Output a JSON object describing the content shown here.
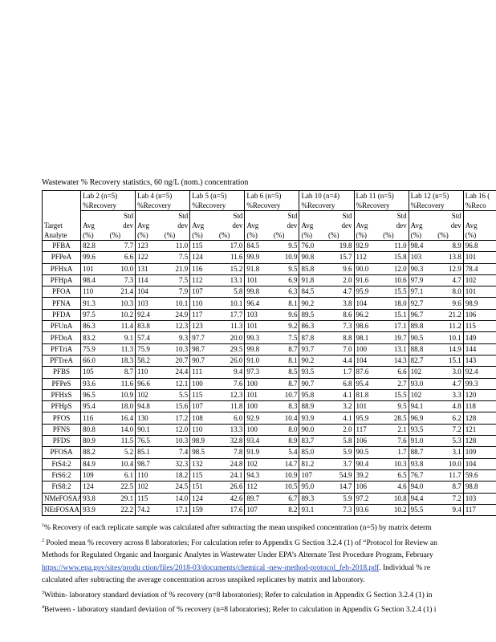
{
  "title": "Wastewater % Recovery statistics, 60 ng/L (nom.) concentration",
  "table": {
    "analyte_header": [
      "Target",
      "Analyte"
    ],
    "recovery_label": "%Recovery",
    "std_label": "Std",
    "dev_label": "dev",
    "avg_label": "Avg",
    "unit_label": "(%)",
    "labs": [
      "Lab 2 (n=5)",
      "Lab 4 (n=5)",
      "Lab 5 (n=5)",
      "Lab 6 (n=5)",
      "Lab 10 (n=4)",
      "Lab 11 (n=5)",
      "Lab 12 (n=5)",
      "Lab 16 ("
    ],
    "clipped_recovery_label": "%Reco",
    "rows": [
      [
        "PFBA",
        "82.8",
        "7.7",
        "123",
        "11.0",
        "115",
        "17.0",
        "84.5",
        "9.5",
        "76.0",
        "19.8",
        "92.9",
        "11.0",
        "98.4",
        "8.9",
        "96.8"
      ],
      [
        "PFPeA",
        "99.6",
        "6.6",
        "122",
        "7.5",
        "124",
        "11.6",
        "99.9",
        "10.9",
        "90.8",
        "15.7",
        "112",
        "15.8",
        "103",
        "13.8",
        "101"
      ],
      [
        "PFHxA",
        "101",
        "10.0",
        "131",
        "21.9",
        "116",
        "15.2",
        "91.8",
        "9.5",
        "85.8",
        "9.6",
        "90.0",
        "12.0",
        "90.3",
        "12.9",
        "78.4"
      ],
      [
        "PFHpA",
        "98.4",
        "7.3",
        "114",
        "7.5",
        "112",
        "13.1",
        "101",
        "6.9",
        "91.8",
        "2.0",
        "91.6",
        "10.6",
        "97.9",
        "4.7",
        "102"
      ],
      [
        "PFOA",
        "110",
        "21.4",
        "104",
        "7.9",
        "107",
        "5.8",
        "99.8",
        "6.3",
        "84.5",
        "4.7",
        "95.9",
        "15.5",
        "97.1",
        "8.0",
        "101"
      ],
      [
        "PFNA",
        "91.3",
        "10.3",
        "103",
        "10.1",
        "110",
        "10.1",
        "96.4",
        "8.1",
        "90.2",
        "3.8",
        "104",
        "18.0",
        "92.7",
        "9.6",
        "98.9"
      ],
      [
        "PFDA",
        "97.5",
        "10.2",
        "92.4",
        "24.9",
        "117",
        "17.7",
        "103",
        "9.6",
        "89.5",
        "8.6",
        "96.2",
        "15.1",
        "96.7",
        "21.2",
        "106"
      ],
      [
        "PFUnA",
        "86.3",
        "11.4",
        "83.8",
        "12.3",
        "123",
        "11.3",
        "101",
        "9.2",
        "86.3",
        "7.3",
        "98.6",
        "17.1",
        "89.8",
        "11.2",
        "115"
      ],
      [
        "PFDoA",
        "83.2",
        "9.1",
        "57.4",
        "9.3",
        "97.7",
        "20.0",
        "99.3",
        "7.5",
        "87.8",
        "8.8",
        "98.1",
        "19.7",
        "90.5",
        "10.1",
        "149"
      ],
      [
        "PFTriA",
        "75.9",
        "11.3",
        "75.9",
        "10.3",
        "98.7",
        "29.5",
        "99.8",
        "8.7",
        "93.7",
        "7.0",
        "100",
        "13.1",
        "88.8",
        "14.9",
        "144"
      ],
      [
        "PFTreA",
        "66.0",
        "18.3",
        "58.2",
        "20.7",
        "90.7",
        "26.0",
        "91.0",
        "8.1",
        "90.2",
        "4.4",
        "104",
        "14.3",
        "82.7",
        "15.1",
        "143"
      ],
      [
        "PFBS",
        "105",
        "8.7",
        "110",
        "24.4",
        "111",
        "9.4",
        "97.3",
        "8.5",
        "93.5",
        "1.7",
        "87.6",
        "6.6",
        "102",
        "3.0",
        "92.4"
      ],
      [
        "PFPeS",
        "93.6",
        "11.6",
        "96.6",
        "12.1",
        "100",
        "7.6",
        "100",
        "8.7",
        "90.7",
        "6.8",
        "95.4",
        "2.7",
        "93.0",
        "4.7",
        "99.3"
      ],
      [
        "PFHxS",
        "96.5",
        "10.9",
        "102",
        "5.5",
        "115",
        "12.3",
        "101",
        "10.7",
        "95.8",
        "4.1",
        "81.8",
        "15.5",
        "102",
        "3.3",
        "120"
      ],
      [
        "PFHpS",
        "95.4",
        "18.0",
        "94.8",
        "15.6",
        "107",
        "11.8",
        "100",
        "8.3",
        "88.9",
        "3.2",
        "101",
        "9.5",
        "94.1",
        "4.8",
        "118"
      ],
      [
        "PFOS",
        "116",
        "16.4",
        "130",
        "17.2",
        "108",
        "6.0",
        "92.9",
        "10.4",
        "93.9",
        "4.1",
        "95.9",
        "28.5",
        "96.9",
        "6.2",
        "128"
      ],
      [
        "PFNS",
        "80.8",
        "14.0",
        "90.1",
        "12.0",
        "110",
        "13.3",
        "100",
        "8.0",
        "90.0",
        "2.0",
        "117",
        "2.1",
        "93.5",
        "7.2",
        "121"
      ],
      [
        "PFDS",
        "80.9",
        "11.5",
        "76.5",
        "10.3",
        "98.9",
        "32.8",
        "93.4",
        "8.9",
        "83.7",
        "5.8",
        "106",
        "7.6",
        "91.0",
        "5.3",
        "128"
      ],
      [
        "PFOSA",
        "88.2",
        "5.2",
        "85.1",
        "7.4",
        "98.5",
        "7.8",
        "91.9",
        "5.4",
        "85.0",
        "5.9",
        "90.5",
        "1.7",
        "88.7",
        "3.1",
        "109"
      ],
      [
        "FtS4:2",
        "84.9",
        "10.4",
        "98.7",
        "32.3",
        "132",
        "24.8",
        "102",
        "14.7",
        "81.2",
        "3.7",
        "90.4",
        "10.3",
        "93.8",
        "10.0",
        "104"
      ],
      [
        "FtS6:2",
        "109",
        "6.1",
        "110",
        "18.2",
        "115",
        "24.1",
        "94.3",
        "10.9",
        "107",
        "54.9",
        "39.2",
        "6.5",
        "76.7",
        "11.7",
        "59.6"
      ],
      [
        "FtS8:2",
        "124",
        "22.5",
        "102",
        "24.5",
        "151",
        "26.6",
        "112",
        "10.5",
        "95.0",
        "14.7",
        "106",
        "4.6",
        "94.0",
        "8.7",
        "98.8"
      ],
      [
        "NMeFOSAA",
        "93.8",
        "29.1",
        "115",
        "14.0",
        "124",
        "42.6",
        "89.7",
        "6.7",
        "89.3",
        "5.9",
        "97.2",
        "10.8",
        "94.4",
        "7.2",
        "103"
      ],
      [
        "NEtFOSAA",
        "93.9",
        "22.2",
        "74.2",
        "17.1",
        "159",
        "17.6",
        "107",
        "8.2",
        "93.1",
        "7.3",
        "93.6",
        "10.2",
        "95.5",
        "9.4",
        "117"
      ]
    ]
  },
  "footnotes": [
    {
      "sup": "1",
      "text": "% Recovery of each replicate sample was calculated after subtracting the mean unspiked concentration (n=5) by matrix determ"
    },
    {
      "sup": "2",
      "text": " Pooled mean % recovery across 8 laboratories; For calculation refer to Appendix G Section 3.2.4 (1) of “Protocol for Review an"
    },
    {
      "text": "Methods for Regulated Organic and Inorganic Analytes in Wastewater Under EPA’s Alternate Test Procedure Program, February"
    },
    {
      "link": "https://www.epa.gov/sites/produ ction/files/2018-03/documents/chemical -new-method-protocol_feb-2018.pdf",
      "text": ". Individual % re"
    },
    {
      "text": "calculated after subtracting the average concentration across unspiked replicates by matrix and laboratory."
    },
    {
      "sup": "3",
      "text": "Within- laboratory standard deviation of % recovery (n=8 laboratories); Refer to calculation in Appendix G Section 3.2.4 (1) in"
    },
    {
      "sup": "4",
      "text": "Between - laboratory standard deviation of % recovery (n=8 laboratories); Refer to calculation in Appendix G Section 3.2.4 (1) i"
    }
  ]
}
